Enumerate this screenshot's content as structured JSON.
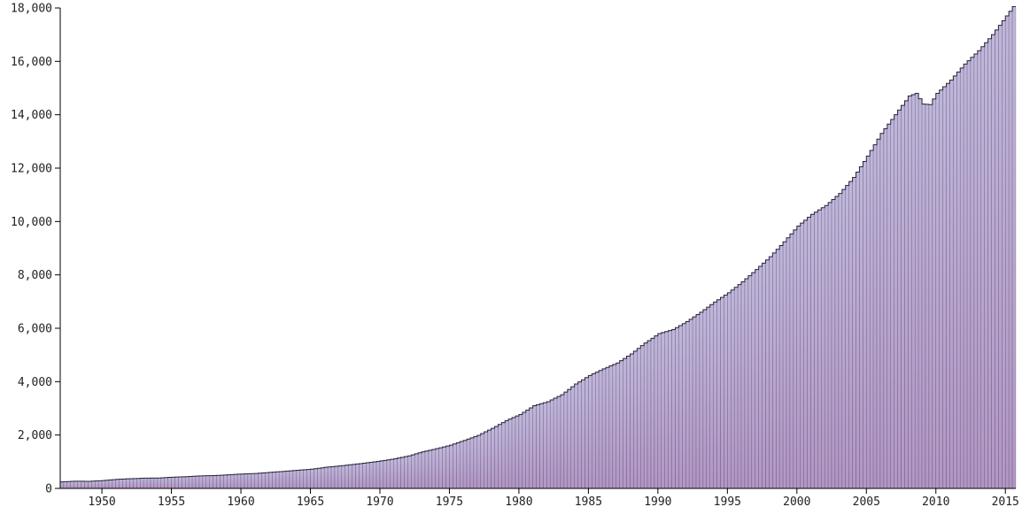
{
  "chart_data": {
    "type": "bar",
    "title": "",
    "xlabel": "",
    "ylabel": "",
    "xlim": [
      1947.0,
      2015.75
    ],
    "ylim": [
      0,
      18000
    ],
    "grid": false,
    "legend": "none",
    "colors": {
      "top": "#c0b6dc",
      "bottom": "#b296c6",
      "outline": "#2a2438"
    },
    "x_ticks": [
      {
        "value": 1950,
        "label": "1950"
      },
      {
        "value": 1955,
        "label": "1955"
      },
      {
        "value": 1960,
        "label": "1960"
      },
      {
        "value": 1965,
        "label": "1965"
      },
      {
        "value": 1970,
        "label": "1970"
      },
      {
        "value": 1975,
        "label": "1975"
      },
      {
        "value": 1980,
        "label": "1980"
      },
      {
        "value": 1985,
        "label": "1985"
      },
      {
        "value": 1990,
        "label": "1990"
      },
      {
        "value": 1995,
        "label": "1995"
      },
      {
        "value": 2000,
        "label": "2000"
      },
      {
        "value": 2005,
        "label": "2005"
      },
      {
        "value": 2010,
        "label": "2010"
      },
      {
        "value": 2015,
        "label": "2015"
      }
    ],
    "y_ticks": [
      {
        "value": 0,
        "label": "0"
      },
      {
        "value": 2000,
        "label": "2,000"
      },
      {
        "value": 4000,
        "label": "4,000"
      },
      {
        "value": 6000,
        "label": "6,000"
      },
      {
        "value": 8000,
        "label": "8,000"
      },
      {
        "value": 10000,
        "label": "10,000"
      },
      {
        "value": 12000,
        "label": "12,000"
      },
      {
        "value": 14000,
        "label": "14,000"
      },
      {
        "value": 16000,
        "label": "16,000"
      },
      {
        "value": 18000,
        "label": "18,000"
      }
    ],
    "bar_period_years": 0.25,
    "x": [
      1947,
      1948,
      1949,
      1950,
      1951,
      1952,
      1953,
      1954,
      1955,
      1956,
      1957,
      1958,
      1959,
      1960,
      1961,
      1962,
      1963,
      1964,
      1965,
      1966,
      1967,
      1968,
      1969,
      1970,
      1971,
      1972,
      1973,
      1974,
      1975,
      1976,
      1977,
      1978,
      1979,
      1980,
      1981,
      1982,
      1983,
      1984,
      1985,
      1986,
      1987,
      1988,
      1989,
      1990,
      1991,
      1992,
      1993,
      1994,
      1995,
      1996,
      1997,
      1998,
      1999,
      2000,
      2001,
      2002,
      2003,
      2004,
      2005,
      2006,
      2007,
      2008,
      2008.5,
      2009,
      2009.5,
      2010,
      2011,
      2012,
      2013,
      2014,
      2015,
      2015.5
    ],
    "values": [
      245,
      270,
      265,
      295,
      340,
      365,
      385,
      390,
      420,
      440,
      470,
      480,
      510,
      540,
      560,
      600,
      640,
      680,
      720,
      790,
      840,
      900,
      960,
      1030,
      1110,
      1220,
      1370,
      1490,
      1620,
      1800,
      1990,
      2250,
      2540,
      2770,
      3100,
      3250,
      3510,
      3910,
      4230,
      4480,
      4700,
      5040,
      5450,
      5800,
      5950,
      6250,
      6600,
      6980,
      7330,
      7740,
      8200,
      8680,
      9240,
      9830,
      10270,
      10600,
      11050,
      11650,
      12450,
      13300,
      14000,
      14700,
      14800,
      14400,
      14380,
      14800,
      15300,
      15900,
      16400,
      17000,
      17700,
      18050
    ]
  }
}
